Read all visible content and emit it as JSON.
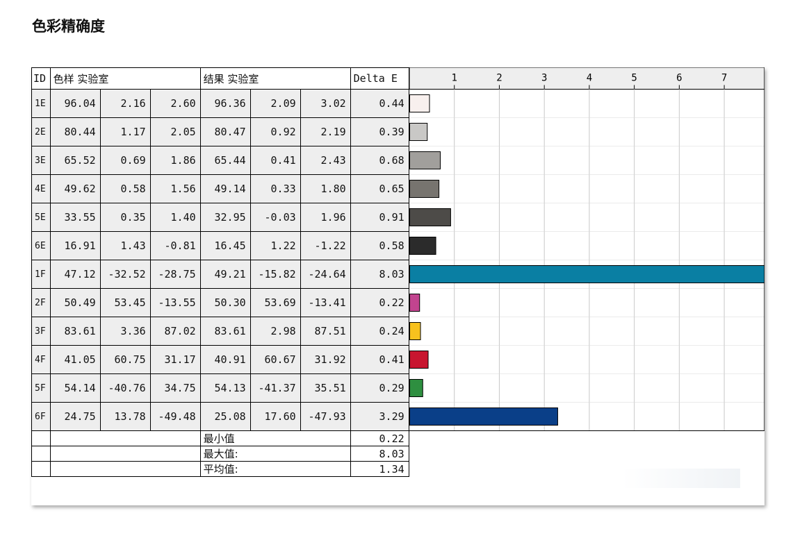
{
  "page": {
    "title": "色彩精确度"
  },
  "table": {
    "headers": {
      "id": "ID",
      "sample": "色样 实验室",
      "result": "结果 实验室",
      "delta": "Delta E"
    },
    "rows": [
      {
        "id": "1E",
        "sample": [
          "96.04",
          "2.16",
          "2.60"
        ],
        "result": [
          "96.36",
          "2.09",
          "3.02"
        ],
        "delta": "0.44"
      },
      {
        "id": "2E",
        "sample": [
          "80.44",
          "1.17",
          "2.05"
        ],
        "result": [
          "80.47",
          "0.92",
          "2.19"
        ],
        "delta": "0.39"
      },
      {
        "id": "3E",
        "sample": [
          "65.52",
          "0.69",
          "1.86"
        ],
        "result": [
          "65.44",
          "0.41",
          "2.43"
        ],
        "delta": "0.68"
      },
      {
        "id": "4E",
        "sample": [
          "49.62",
          "0.58",
          "1.56"
        ],
        "result": [
          "49.14",
          "0.33",
          "1.80"
        ],
        "delta": "0.65"
      },
      {
        "id": "5E",
        "sample": [
          "33.55",
          "0.35",
          "1.40"
        ],
        "result": [
          "32.95",
          "-0.03",
          "1.96"
        ],
        "delta": "0.91"
      },
      {
        "id": "6E",
        "sample": [
          "16.91",
          "1.43",
          "-0.81"
        ],
        "result": [
          "16.45",
          "1.22",
          "-1.22"
        ],
        "delta": "0.58"
      },
      {
        "id": "1F",
        "sample": [
          "47.12",
          "-32.52",
          "-28.75"
        ],
        "result": [
          "49.21",
          "-15.82",
          "-24.64"
        ],
        "delta": "8.03"
      },
      {
        "id": "2F",
        "sample": [
          "50.49",
          "53.45",
          "-13.55"
        ],
        "result": [
          "50.30",
          "53.69",
          "-13.41"
        ],
        "delta": "0.22"
      },
      {
        "id": "3F",
        "sample": [
          "83.61",
          "3.36",
          "87.02"
        ],
        "result": [
          "83.61",
          "2.98",
          "87.51"
        ],
        "delta": "0.24"
      },
      {
        "id": "4F",
        "sample": [
          "41.05",
          "60.75",
          "31.17"
        ],
        "result": [
          "40.91",
          "60.67",
          "31.92"
        ],
        "delta": "0.41"
      },
      {
        "id": "5F",
        "sample": [
          "54.14",
          "-40.76",
          "34.75"
        ],
        "result": [
          "54.13",
          "-41.37",
          "35.51"
        ],
        "delta": "0.29"
      },
      {
        "id": "6F",
        "sample": [
          "24.75",
          "13.78",
          "-49.48"
        ],
        "result": [
          "25.08",
          "17.60",
          "-47.93"
        ],
        "delta": "3.29"
      }
    ],
    "summary": [
      {
        "label": "最小值",
        "value": "0.22"
      },
      {
        "label": "最大值:",
        "value": "8.03"
      },
      {
        "label": "平均值:",
        "value": "1.34"
      }
    ]
  },
  "chart_data": {
    "type": "bar",
    "orientation": "horizontal",
    "categories": [
      "1E",
      "2E",
      "3E",
      "4E",
      "5E",
      "6E",
      "1F",
      "2F",
      "3F",
      "4F",
      "5F",
      "6F"
    ],
    "values": [
      0.44,
      0.39,
      0.68,
      0.65,
      0.91,
      0.58,
      8.03,
      0.22,
      0.24,
      0.41,
      0.29,
      3.29
    ],
    "colors": [
      "#f8f0ee",
      "#c9c8c6",
      "#a19f9c",
      "#77746f",
      "#4d4b48",
      "#2b2b2b",
      "#0a7fa3",
      "#c2448f",
      "#f7c11e",
      "#c8152f",
      "#2e8f40",
      "#0a3f88"
    ],
    "xticks": [
      "1",
      "2",
      "3",
      "4",
      "5",
      "6",
      "7"
    ],
    "xlim": [
      0,
      7.9
    ],
    "grid": true,
    "gridcolor": "#c8c8c8"
  }
}
